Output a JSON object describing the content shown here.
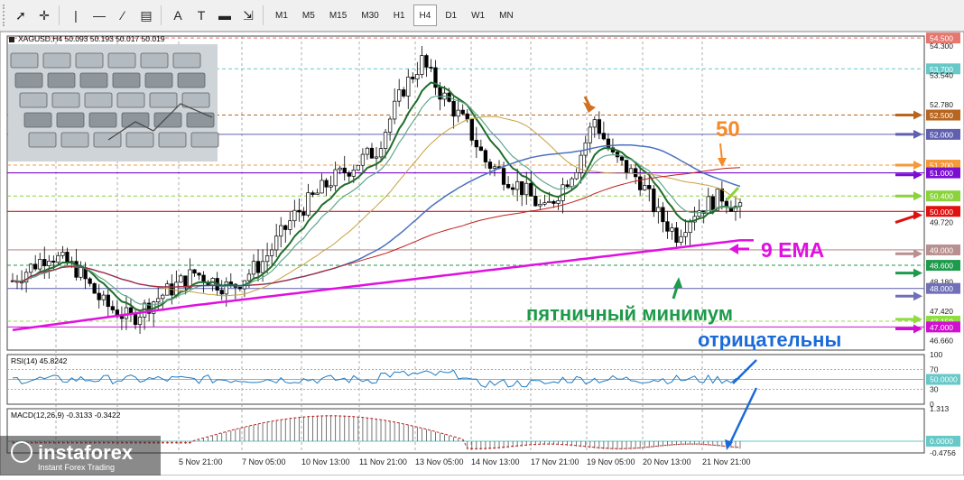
{
  "toolbar": {
    "tools": [
      {
        "name": "cursor-icon",
        "glyph": "➚"
      },
      {
        "name": "crosshair-icon",
        "glyph": "✛"
      },
      {
        "name": "vertical-line-icon",
        "glyph": "|"
      },
      {
        "name": "horizontal-line-icon",
        "glyph": "—"
      },
      {
        "name": "trendline-icon",
        "glyph": "⁄"
      },
      {
        "name": "fibonacci-icon",
        "glyph": "▤"
      },
      {
        "name": "text-icon",
        "glyph": "A"
      },
      {
        "name": "text-label-icon",
        "glyph": "T"
      },
      {
        "name": "rectangle-icon",
        "glyph": "▬"
      },
      {
        "name": "arrows-icon",
        "glyph": "⇲"
      }
    ],
    "timeframes": [
      "M1",
      "M5",
      "M15",
      "M30",
      "H1",
      "H4",
      "D1",
      "W1",
      "MN"
    ],
    "active_timeframe": "H4"
  },
  "chart": {
    "header": "XAGUSD,H4  50.093 50.193 50.017 50.019",
    "price_labels": [
      {
        "text": "54.500",
        "bg": "#e6766e"
      },
      {
        "text": "54.300",
        "bg": null
      },
      {
        "text": "53.700",
        "bg": "#67c8c8"
      },
      {
        "text": "53.540",
        "bg": null
      },
      {
        "text": "52.780",
        "bg": null
      },
      {
        "text": "52.500",
        "bg": "#b8651f"
      },
      {
        "text": "52.000",
        "bg": "#6060b0"
      },
      {
        "text": "51.200",
        "bg": "#f59a3a"
      },
      {
        "text": "51.000",
        "bg": "#7a0dd0"
      },
      {
        "text": "50.400",
        "bg": "#8ad33a"
      },
      {
        "text": "50.000",
        "bg": "#e01010"
      },
      {
        "text": "49.720",
        "bg": null
      },
      {
        "text": "49.000",
        "bg": "#b89090"
      },
      {
        "text": "48.600",
        "bg": "#1d9a4a"
      },
      {
        "text": "48.180",
        "bg": null
      },
      {
        "text": "48.000",
        "bg": "#7070b8"
      },
      {
        "text": "47.420",
        "bg": null
      },
      {
        "text": "47.150",
        "bg": "#90dd40"
      },
      {
        "text": "47.000",
        "bg": "#d010d0"
      },
      {
        "text": "46.660",
        "bg": null
      }
    ],
    "time_labels": [
      "5 Nov 21:00",
      "7 Nov 05:00",
      "10 Nov 13:00",
      "11 Nov 21:00",
      "13 Nov 05:00",
      "14 Nov 13:00",
      "17 Nov 21:00",
      "19 Nov 05:00",
      "20 Nov 13:00",
      "21 Nov 21:00"
    ],
    "annotations": {
      "fifty": "50",
      "ema": "9 EMA",
      "friday_low": "пятничный минимум",
      "negative": "отрицательны"
    },
    "rsi": {
      "label": "RSI(14) 45.8242",
      "scale": [
        "100",
        "70",
        "50.0000",
        "30",
        "0"
      ]
    },
    "macd": {
      "label": "MACD(12,26,9) -0.3133 -0.3422",
      "scale": [
        "1.313",
        "0.0000",
        "-0.4756"
      ]
    },
    "watermark": {
      "brand": "instaforex",
      "tagline": "Instant Forex Trading"
    }
  }
}
